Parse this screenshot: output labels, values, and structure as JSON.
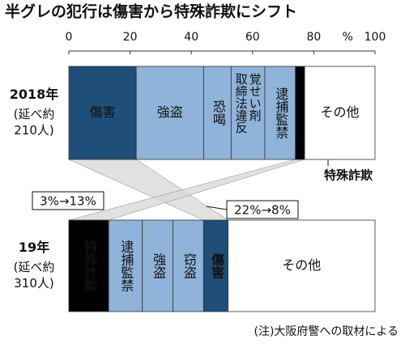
{
  "chart_data": {
    "type": "stacked-bar-100",
    "title": "半グレの犯行は傷害から特殊詐欺にシフト",
    "xlim": [
      0,
      100
    ],
    "xticks": [
      0,
      20,
      40,
      60,
      80,
      100
    ],
    "x_unit": "%",
    "bars": [
      {
        "category": "2018年",
        "note": [
          "(延べ約",
          "210人)"
        ],
        "segments": [
          {
            "name": "傷害",
            "value": 22,
            "color": "#1f4e79"
          },
          {
            "name": "強盗",
            "value": 22,
            "color": "#8fb3d9"
          },
          {
            "name": "恐喝",
            "value": 9,
            "color": "#8fb3d9"
          },
          {
            "name": [
              "覚せい剤",
              "取締法違反"
            ],
            "value": 11,
            "color": "#8fb3d9"
          },
          {
            "name": "逮捕監禁",
            "value": 10,
            "color": "#8fb3d9"
          },
          {
            "name": "特殊詐欺",
            "value": 3,
            "color": "#000000"
          },
          {
            "name": "その他",
            "value": 23,
            "color": "#ffffff"
          }
        ]
      },
      {
        "category": "19年",
        "note": [
          "(延べ約",
          "310人)"
        ],
        "segments": [
          {
            "name": "特殊詐欺",
            "value": 13,
            "color": "#000000"
          },
          {
            "name": "逮捕監禁",
            "value": 11,
            "color": "#8fb3d9"
          },
          {
            "name": "強盗",
            "value": 10,
            "color": "#8fb3d9"
          },
          {
            "name": "窃盗",
            "value": 10,
            "color": "#8fb3d9"
          },
          {
            "name": "傷害",
            "value": 8,
            "color": "#1f4e79"
          },
          {
            "name": "その他",
            "value": 48,
            "color": "#ffffff"
          }
        ]
      }
    ],
    "annotations": [
      "3%→13%",
      "22%→8%"
    ],
    "source": "(注)大阪府警への取材による"
  }
}
